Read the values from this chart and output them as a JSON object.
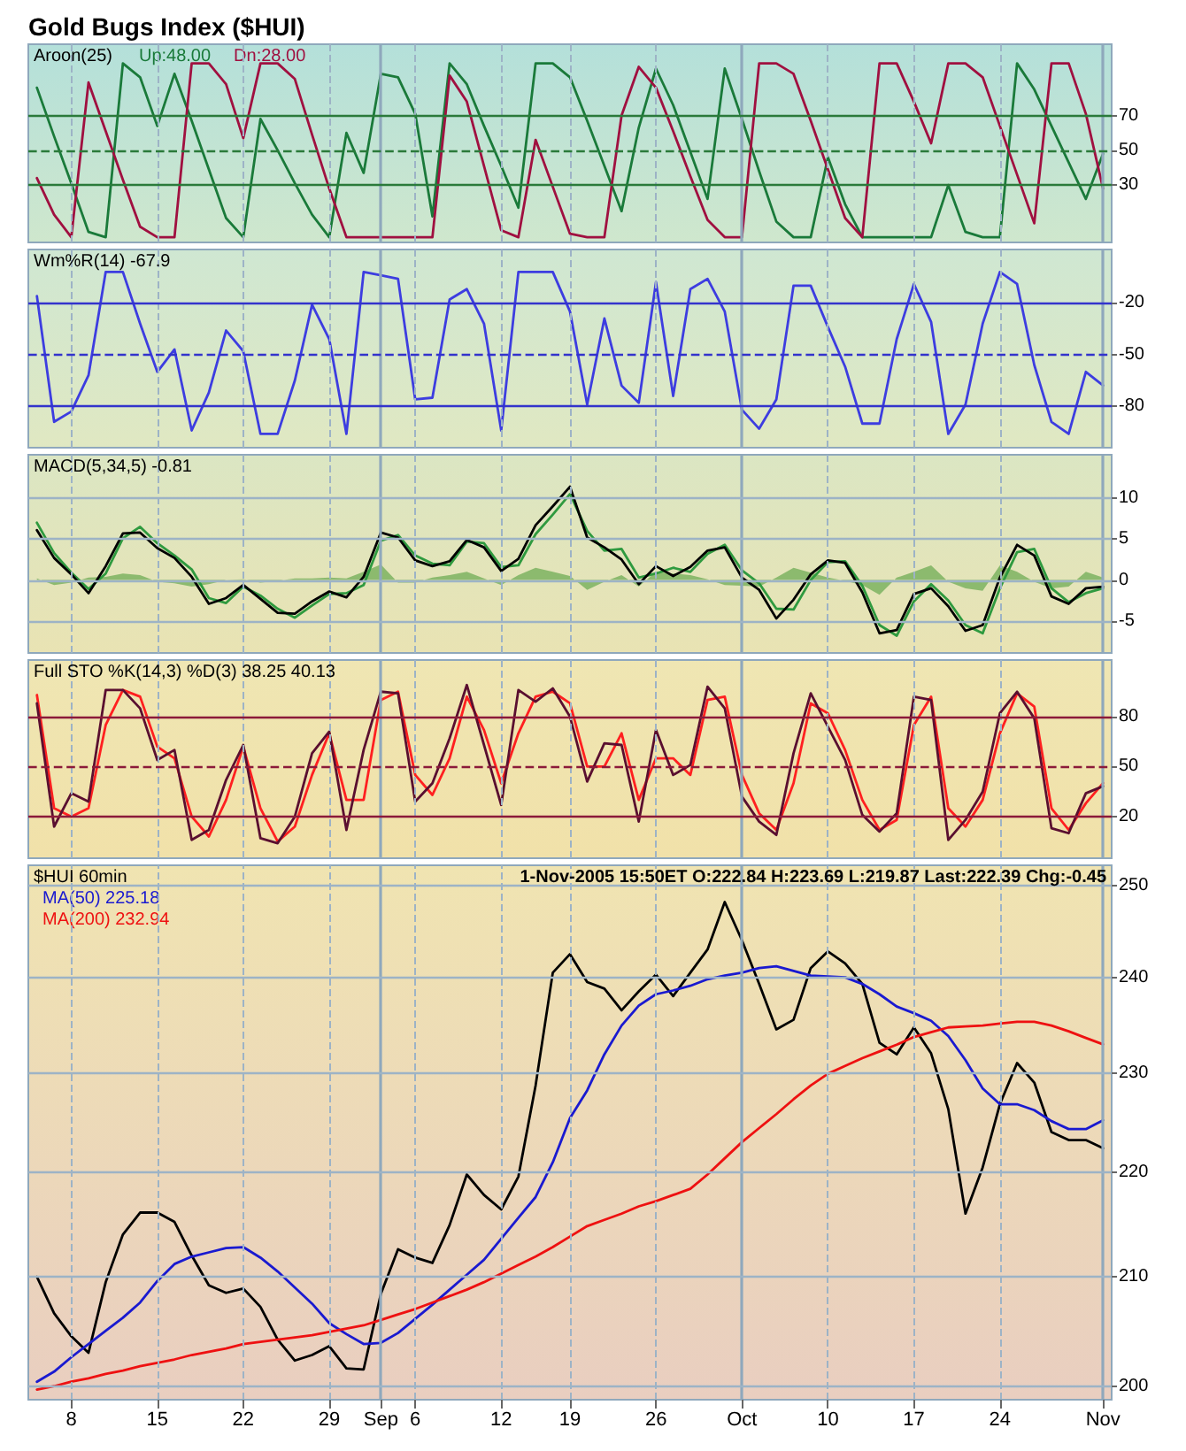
{
  "chart_data": [
    {
      "type": "line",
      "title": "Gold Bugs Index ($HUI)",
      "subtitle": "Aroon(25)",
      "legend": "top left",
      "grid": "x",
      "tick_labels": "y",
      "ylim": [
        -3,
        111
      ],
      "yticks": [
        30,
        50,
        70
      ],
      "ref_lines": [
        {
          "axis": "y",
          "value": 30,
          "color": "#2a7a3a",
          "line_style": "solid"
        },
        {
          "axis": "y",
          "value": 50,
          "color": "#2a7a3a",
          "line_style": "dashed"
        },
        {
          "axis": "y",
          "value": 70,
          "color": "#2a7a3a",
          "line_style": "solid"
        }
      ],
      "series": [
        {
          "name": "Up:48.00",
          "color": "#1a7a3a",
          "values": [
            86,
            58,
            31,
            3,
            0,
            100,
            92,
            64,
            94,
            67,
            39,
            11,
            0,
            68,
            50,
            31,
            13,
            0,
            60,
            37,
            94,
            92,
            71,
            12,
            100,
            88,
            64,
            41,
            17,
            100,
            100,
            92,
            67,
            41,
            15,
            63,
            97,
            76,
            49,
            22,
            97,
            68,
            38,
            9,
            0,
            0,
            46,
            19,
            0,
            0,
            0,
            0,
            0,
            30,
            3,
            0,
            0,
            100,
            85,
            64,
            43,
            22,
            48
          ]
        },
        {
          "name": "Dn:28.00",
          "color": "#a01040",
          "values": [
            34,
            13,
            0,
            89,
            61,
            33,
            6,
            0,
            0,
            100,
            100,
            88,
            57,
            100,
            100,
            91,
            59,
            28,
            0,
            0,
            0,
            0,
            0,
            0,
            93,
            78,
            41,
            4,
            0,
            56,
            29,
            2,
            0,
            0,
            70,
            98,
            86,
            61,
            35,
            10,
            0,
            0,
            100,
            100,
            94,
            67,
            39,
            11,
            0,
            100,
            100,
            78,
            54,
            100,
            100,
            92,
            64,
            36,
            8,
            100,
            100,
            71,
            28
          ]
        }
      ]
    },
    {
      "type": "line",
      "subtitle": "Wm%R(14) -67.9",
      "grid": "x",
      "tick_labels": "y",
      "ylim": [
        -104,
        11
      ],
      "yticks": [
        -80,
        -50,
        -20
      ],
      "ref_lines": [
        {
          "axis": "y",
          "value": -20,
          "color": "#3333cc",
          "line_style": "solid"
        },
        {
          "axis": "y",
          "value": -50,
          "color": "#3333cc",
          "line_style": "dashed"
        },
        {
          "axis": "y",
          "value": -80,
          "color": "#3333cc",
          "line_style": "solid"
        }
      ],
      "series": [
        {
          "color": "#3d3de0",
          "values": [
            -16,
            -89,
            -83,
            -62,
            -2,
            -2,
            -32,
            -60,
            -47,
            -94,
            -72,
            -36,
            -48,
            -96,
            -96,
            -65,
            -21,
            -41,
            -96,
            -2,
            -4,
            -6,
            -76,
            -75,
            -18,
            -12,
            -32,
            -94,
            -2,
            -2,
            -2,
            -25,
            -79,
            -29,
            -68,
            -78,
            -8,
            -74,
            -12,
            -6,
            -25,
            -82,
            -93,
            -76,
            -10,
            -10,
            -34,
            -57,
            -90,
            -90,
            -41,
            -9,
            -31,
            -96,
            -79,
            -32,
            -2,
            -9,
            -56,
            -89,
            -96,
            -60,
            -67.9
          ]
        }
      ]
    },
    {
      "type": "line",
      "subtitle": "MACD(5,34,5) -0.81",
      "grid": true,
      "tick_labels": "y",
      "ylim": [
        -8.9,
        15.3
      ],
      "yticks": [
        -5,
        0,
        5,
        10
      ],
      "series": [
        {
          "type": "area",
          "color": "#8cba6e",
          "values": [
            0.2,
            -0.6,
            -0.3,
            0.3,
            0.4,
            0.8,
            0.6,
            -0.2,
            -0.4,
            -0.8,
            -0.5,
            0.0,
            0.1,
            -0.3,
            -0.1,
            0.2,
            0.2,
            0.3,
            0.2,
            1.0,
            1.9,
            -0.3,
            -0.3,
            0.3,
            0.6,
            1.0,
            0.2,
            -0.6,
            0.6,
            1.5,
            1.0,
            0.5,
            -1.2,
            -0.2,
            0.6,
            -0.8,
            1.0,
            0.8,
            0.6,
            0.1,
            -0.6,
            -0.7,
            -0.8,
            0.3,
            1.5,
            0.9,
            0.3,
            -0.1,
            -0.6,
            -1.8,
            0.3,
            1.0,
            1.8,
            -0.2,
            -1.0,
            -1.3,
            1.8,
            1.0,
            -0.2,
            -1.0,
            -0.8,
            1.0,
            0.3
          ]
        },
        {
          "color": "#2f9a3f",
          "values": [
            7.0,
            3.3,
            0.9,
            -1.1,
            0.8,
            5.1,
            6.5,
            4.5,
            3.0,
            1.3,
            -2.2,
            -2.8,
            -0.8,
            -1.9,
            -3.5,
            -4.6,
            -3.1,
            -1.7,
            -1.6,
            -0.6,
            4.8,
            5.5,
            3.0,
            2.0,
            1.8,
            4.7,
            4.5,
            1.6,
            1.8,
            5.6,
            8.0,
            10.5,
            6.0,
            3.6,
            3.8,
            0.3,
            0.8,
            1.5,
            1.0,
            3.2,
            4.3,
            1.2,
            -0.4,
            -3.5,
            -3.6,
            0.0,
            2.2,
            2.3,
            -0.7,
            -5.5,
            -6.8,
            -2.6,
            -0.5,
            -2.5,
            -5.5,
            -6.5,
            -1.0,
            3.4,
            3.8,
            -1.0,
            -2.7,
            -1.6,
            -1.0
          ]
        },
        {
          "color": "#000000",
          "values": [
            6.1,
            2.7,
            0.7,
            -1.6,
            1.7,
            5.7,
            5.8,
            3.9,
            2.7,
            0.4,
            -2.9,
            -2.2,
            -0.6,
            -2.3,
            -4.0,
            -4.1,
            -2.6,
            -1.4,
            -2.1,
            0.4,
            5.8,
            5.2,
            2.4,
            1.7,
            2.3,
            4.9,
            4.0,
            1.1,
            2.6,
            6.7,
            9.0,
            11.4,
            5.2,
            4.0,
            2.5,
            -0.5,
            1.7,
            0.5,
            1.6,
            3.6,
            4.0,
            0.3,
            -1.2,
            -4.7,
            -2.4,
            0.7,
            2.4,
            2.1,
            -1.5,
            -6.5,
            -6.1,
            -1.7,
            -1.0,
            -3.2,
            -6.2,
            -5.5,
            0.3,
            4.3,
            3.0,
            -2.0,
            -2.9,
            -1.0,
            -0.81
          ]
        }
      ]
    },
    {
      "type": "line",
      "subtitle": "Full STO %K(14,3) %D(3) 38.25 40.13",
      "grid": "x",
      "tick_labels": "y",
      "ylim": [
        -5,
        114
      ],
      "yticks": [
        20,
        50,
        80
      ],
      "ref_lines": [
        {
          "axis": "y",
          "value": 20,
          "color": "#8b1a3a",
          "line_style": "solid"
        },
        {
          "axis": "y",
          "value": 50,
          "color": "#8b1a3a",
          "line_style": "dashed"
        },
        {
          "axis": "y",
          "value": 80,
          "color": "#8b1a3a",
          "line_style": "solid"
        }
      ],
      "series": [
        {
          "color": "#ff2020",
          "values": [
            93,
            25,
            20,
            25,
            75,
            96,
            92,
            62,
            55,
            20,
            8,
            30,
            62,
            25,
            5,
            14,
            45,
            70,
            30,
            30,
            90,
            95,
            45,
            33,
            55,
            92,
            72,
            40,
            70,
            92,
            95,
            88,
            50,
            50,
            70,
            30,
            55,
            55,
            45,
            90,
            92,
            45,
            22,
            12,
            40,
            88,
            82,
            60,
            30,
            12,
            18,
            75,
            92,
            25,
            14,
            30,
            70,
            94,
            86,
            25,
            12,
            28,
            40.13
          ]
        },
        {
          "color": "#5a0f30",
          "values": [
            88,
            14,
            34,
            29,
            96,
            96,
            85,
            54,
            60,
            6,
            12,
            42,
            63,
            7,
            4,
            20,
            58,
            71,
            12,
            60,
            95,
            94,
            29,
            40,
            67,
            99,
            63,
            27,
            96,
            89,
            97,
            80,
            41,
            64,
            63,
            17,
            72,
            45,
            51,
            98,
            85,
            32,
            17,
            9,
            58,
            94,
            74,
            54,
            21,
            11,
            22,
            92,
            90,
            6,
            18,
            35,
            82,
            95,
            79,
            13,
            10,
            34,
            38.25
          ]
        }
      ]
    },
    {
      "type": "line",
      "subtitle": "$HUI 60min",
      "legend": "top left",
      "grid": true,
      "log": "y",
      "ylim": [
        198.8,
        252.3
      ],
      "yticks": [
        200,
        210,
        220,
        230,
        240,
        250
      ],
      "categories": [
        null,
        null,
        "8",
        null,
        null,
        null,
        null,
        "15",
        null,
        null,
        null,
        null,
        "22",
        null,
        null,
        null,
        null,
        "29",
        null,
        null,
        "Sep",
        null,
        "6",
        null,
        null,
        null,
        null,
        "12",
        null,
        null,
        null,
        "19",
        null,
        null,
        null,
        null,
        "26",
        null,
        null,
        null,
        null,
        "Oct",
        null,
        null,
        null,
        null,
        "10",
        null,
        null,
        null,
        null,
        "17",
        null,
        null,
        null,
        null,
        "24",
        null,
        null,
        null,
        null,
        null,
        "Nov"
      ],
      "annotations": [
        "1-Nov-2005 15:50ET O:222.84 H:223.69 L:219.87 Last:222.39 Chg:-0.45"
      ],
      "series": [
        {
          "color": "#000000",
          "values": [
            210,
            206.6,
            204.5,
            203,
            209.5,
            214,
            216.1,
            216.1,
            215.2,
            212,
            209.2,
            208.5,
            208.9,
            207.2,
            204.2,
            202.3,
            202.8,
            203.6,
            201.6,
            201.5,
            208.4,
            212.6,
            211.8,
            211.3,
            214.9,
            219.8,
            217.8,
            216.4,
            219.6,
            228.7,
            240.5,
            242.5,
            239.5,
            238.8,
            236.5,
            238.5,
            240.3,
            238,
            240.5,
            243,
            248.2,
            244,
            239.3,
            234.5,
            235.5,
            241,
            242.8,
            241.5,
            239.3,
            233.1,
            231.9,
            234.7,
            232,
            226.3,
            216,
            220.5,
            226.8,
            231,
            229,
            224,
            223.2,
            223.2,
            222.39
          ]
        },
        {
          "name": "MA(50) 225.18",
          "color": "#1a1ad0",
          "values": [
            200.4,
            201.3,
            202.6,
            203.8,
            205,
            206.2,
            207.6,
            209.6,
            211.2,
            211.9,
            212.3,
            212.7,
            212.8,
            211.8,
            210.5,
            209,
            207.5,
            205.7,
            204.7,
            203.8,
            203.9,
            204.8,
            206.1,
            207.4,
            208.8,
            210.2,
            211.6,
            213.6,
            215.6,
            217.6,
            221,
            225.4,
            228.2,
            231.9,
            234.9,
            237,
            238.2,
            238.6,
            239.1,
            239.8,
            240.2,
            240.5,
            241,
            241.2,
            240.7,
            240.2,
            240.1,
            240,
            239.3,
            238.2,
            236.9,
            236.2,
            235.4,
            233.8,
            231.3,
            228.4,
            226.8,
            226.8,
            226.2,
            225.1,
            224.3,
            224.3,
            225.18
          ]
        },
        {
          "name": "MA(200) 232.94",
          "color": "#ee1111",
          "values": [
            199.7,
            200.0,
            200.4,
            200.7,
            201.1,
            201.4,
            201.8,
            202.1,
            202.4,
            202.8,
            203.1,
            203.4,
            203.8,
            204,
            204.2,
            204.4,
            204.6,
            204.9,
            205.2,
            205.5,
            206,
            206.5,
            207,
            207.6,
            208.2,
            208.8,
            209.5,
            210.3,
            211.1,
            211.9,
            212.8,
            213.8,
            214.8,
            215.4,
            216,
            216.7,
            217.2,
            217.8,
            218.4,
            219.8,
            221.4,
            223,
            224.4,
            225.8,
            227.3,
            228.7,
            229.9,
            230.7,
            231.5,
            232.2,
            232.9,
            233.7,
            234.2,
            234.7,
            234.8,
            234.9,
            235.1,
            235.3,
            235.3,
            234.9,
            234.3,
            233.6,
            232.94
          ]
        }
      ]
    }
  ]
}
